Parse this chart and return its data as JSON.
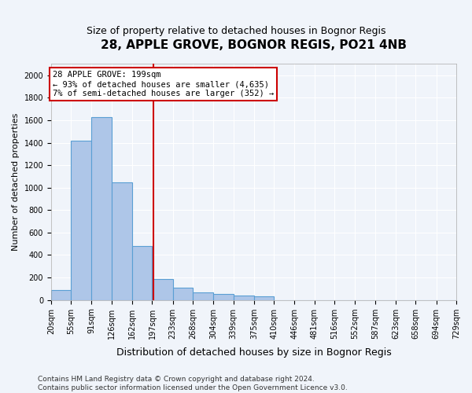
{
  "title": "28, APPLE GROVE, BOGNOR REGIS, PO21 4NB",
  "subtitle": "Size of property relative to detached houses in Bognor Regis",
  "xlabel": "Distribution of detached houses by size in Bognor Regis",
  "ylabel": "Number of detached properties",
  "bin_labels": [
    "20sqm",
    "55sqm",
    "91sqm",
    "126sqm",
    "162sqm",
    "197sqm",
    "233sqm",
    "268sqm",
    "304sqm",
    "339sqm",
    "375sqm",
    "410sqm",
    "446sqm",
    "481sqm",
    "516sqm",
    "552sqm",
    "587sqm",
    "623sqm",
    "658sqm",
    "694sqm",
    "729sqm"
  ],
  "bin_edges": [
    20,
    55,
    91,
    126,
    162,
    197,
    233,
    268,
    304,
    339,
    375,
    410,
    446,
    481,
    516,
    552,
    587,
    623,
    658,
    694,
    729
  ],
  "bar_heights": [
    90,
    1420,
    1630,
    1050,
    480,
    190,
    110,
    70,
    55,
    40,
    30,
    0,
    0,
    0,
    0,
    0,
    0,
    0,
    0,
    0
  ],
  "bar_color": "#aec6e8",
  "bar_edge_color": "#5a9fd4",
  "property_line_x": 199,
  "property_line_color": "#cc0000",
  "annotation_text": "28 APPLE GROVE: 199sqm\n← 93% of detached houses are smaller (4,635)\n7% of semi-detached houses are larger (352) →",
  "annotation_box_color": "#cc0000",
  "annotation_text_color": "#000000",
  "ylim": [
    0,
    2100
  ],
  "yticks": [
    0,
    200,
    400,
    600,
    800,
    1000,
    1200,
    1400,
    1600,
    1800,
    2000
  ],
  "footer_text": "Contains HM Land Registry data © Crown copyright and database right 2024.\nContains public sector information licensed under the Open Government Licence v3.0.",
  "background_color": "#f0f4fa",
  "plot_background_color": "#f0f4fa",
  "grid_color": "#ffffff",
  "title_fontsize": 11,
  "subtitle_fontsize": 9,
  "xlabel_fontsize": 9,
  "ylabel_fontsize": 8,
  "tick_fontsize": 7,
  "annotation_fontsize": 7.5,
  "footer_fontsize": 6.5
}
